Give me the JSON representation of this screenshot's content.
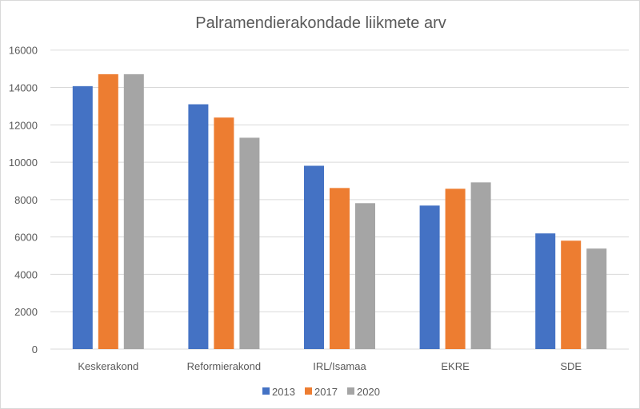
{
  "chart_data": {
    "type": "bar",
    "title": "Palramendierakondade liikmete arv",
    "xlabel": "",
    "ylabel": "",
    "categories": [
      "Keskerakond",
      "Reformierakond",
      "IRL/Isamaa",
      "EKRE",
      "SDE"
    ],
    "series": [
      {
        "name": "2013",
        "color": "#4472c4",
        "values": [
          14070,
          13100,
          9810,
          7680,
          6190
        ]
      },
      {
        "name": "2017",
        "color": "#ed7d31",
        "values": [
          14710,
          12390,
          8620,
          8580,
          5800
        ]
      },
      {
        "name": "2020",
        "color": "#a5a5a5",
        "values": [
          14710,
          11310,
          7810,
          8920,
          5380
        ]
      }
    ],
    "ylim": [
      0,
      16000
    ],
    "yticks": [
      "0",
      "2000",
      "4000",
      "6000",
      "8000",
      "10000",
      "12000",
      "14000",
      "16000"
    ],
    "grid": true,
    "legend": "bottom"
  }
}
